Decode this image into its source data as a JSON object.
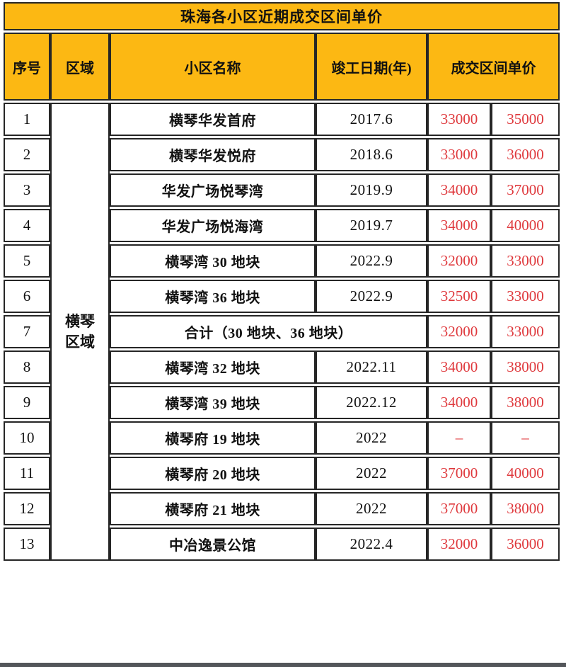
{
  "title": "珠海各小区近期成交区间单价",
  "columns": {
    "no": "序号",
    "region": "区域",
    "name": "小区名称",
    "date": "竣工日期(年)",
    "price": "成交区间单价"
  },
  "region": {
    "label": "横琴\n区域"
  },
  "rows": [
    {
      "no": "1",
      "name": "横琴华发首府",
      "date": "2017.6",
      "low": "33000",
      "high": "35000"
    },
    {
      "no": "2",
      "name": "横琴华发悦府",
      "date": "2018.6",
      "low": "33000",
      "high": "36000"
    },
    {
      "no": "3",
      "name": "华发广场悦琴湾",
      "date": "2019.9",
      "low": "34000",
      "high": "37000"
    },
    {
      "no": "4",
      "name": "华发广场悦海湾",
      "date": "2019.7",
      "low": "34000",
      "high": "40000"
    },
    {
      "no": "5",
      "name": "横琴湾 30 地块",
      "date": "2022.9",
      "low": "32000",
      "high": "33000"
    },
    {
      "no": "6",
      "name": "横琴湾 36 地块",
      "date": "2022.9",
      "low": "32500",
      "high": "33000"
    },
    {
      "no": "7",
      "name": "合计（30 地块、36 地块）",
      "date": null,
      "low": "32000",
      "high": "33000"
    },
    {
      "no": "8",
      "name": "横琴湾 32 地块",
      "date": "2022.11",
      "low": "34000",
      "high": "38000"
    },
    {
      "no": "9",
      "name": "横琴湾 39 地块",
      "date": "2022.12",
      "low": "34000",
      "high": "38000"
    },
    {
      "no": "10",
      "name": "横琴府 19 地块",
      "date": "2022",
      "low": "–",
      "high": "–"
    },
    {
      "no": "11",
      "name": "横琴府 20 地块",
      "date": "2022",
      "low": "37000",
      "high": "40000"
    },
    {
      "no": "12",
      "name": "横琴府 21 地块",
      "date": "2022",
      "low": "37000",
      "high": "38000"
    },
    {
      "no": "13",
      "name": "中冶逸景公馆",
      "date": "2022.4",
      "low": "32000",
      "high": "36000"
    }
  ],
  "colors": {
    "header_yellow": "#FCB813",
    "price_red": "#DF393D",
    "border": "#262626",
    "bottom_bar": "#53565A"
  }
}
